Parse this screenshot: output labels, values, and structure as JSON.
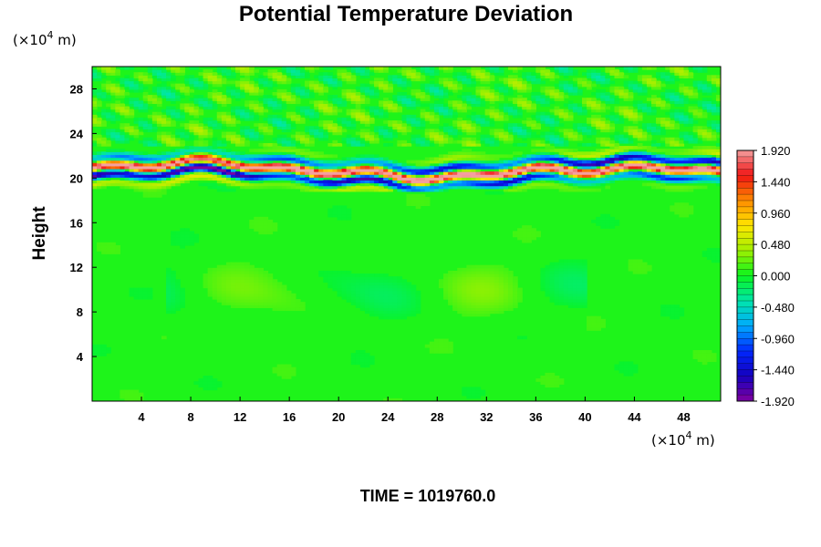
{
  "chart_data": {
    "type": "heatmap",
    "title": "Potential Temperature Deviation",
    "ylabel": "Height",
    "xlabel": "",
    "x_unit_prefix": "(×10",
    "x_unit_exp": "4",
    "x_unit_suffix": " m)",
    "y_unit_prefix": "(×10",
    "y_unit_exp": "4",
    "y_unit_suffix": " m)",
    "xlim": [
      0,
      51
    ],
    "ylim": [
      0,
      30
    ],
    "x_ticks": [
      "4",
      "8",
      "12",
      "16",
      "20",
      "24",
      "28",
      "32",
      "36",
      "40",
      "44",
      "48"
    ],
    "y_ticks": [
      "4",
      "8",
      "12",
      "16",
      "20",
      "24",
      "28"
    ],
    "colorbar": {
      "min": -1.92,
      "max": 1.92,
      "tick_values": [
        1.92,
        1.44,
        0.96,
        0.48,
        0.0,
        -0.48,
        -0.96,
        -1.44,
        -1.92
      ],
      "tick_labels": [
        "1.920",
        "1.440",
        "0.960",
        "0.480",
        "0.000",
        "-0.480",
        "-0.960",
        "-1.440",
        "-1.920"
      ]
    },
    "field_features": {
      "background_value": 0.05,
      "strong_band_height_range": [
        19.5,
        23.0
      ],
      "strong_band_amplitude": 1.92,
      "upper_layer_height_range": [
        23.0,
        30.0
      ],
      "upper_layer_amplitude": 0.35
    },
    "footer": "TIME = 1019760.0"
  }
}
